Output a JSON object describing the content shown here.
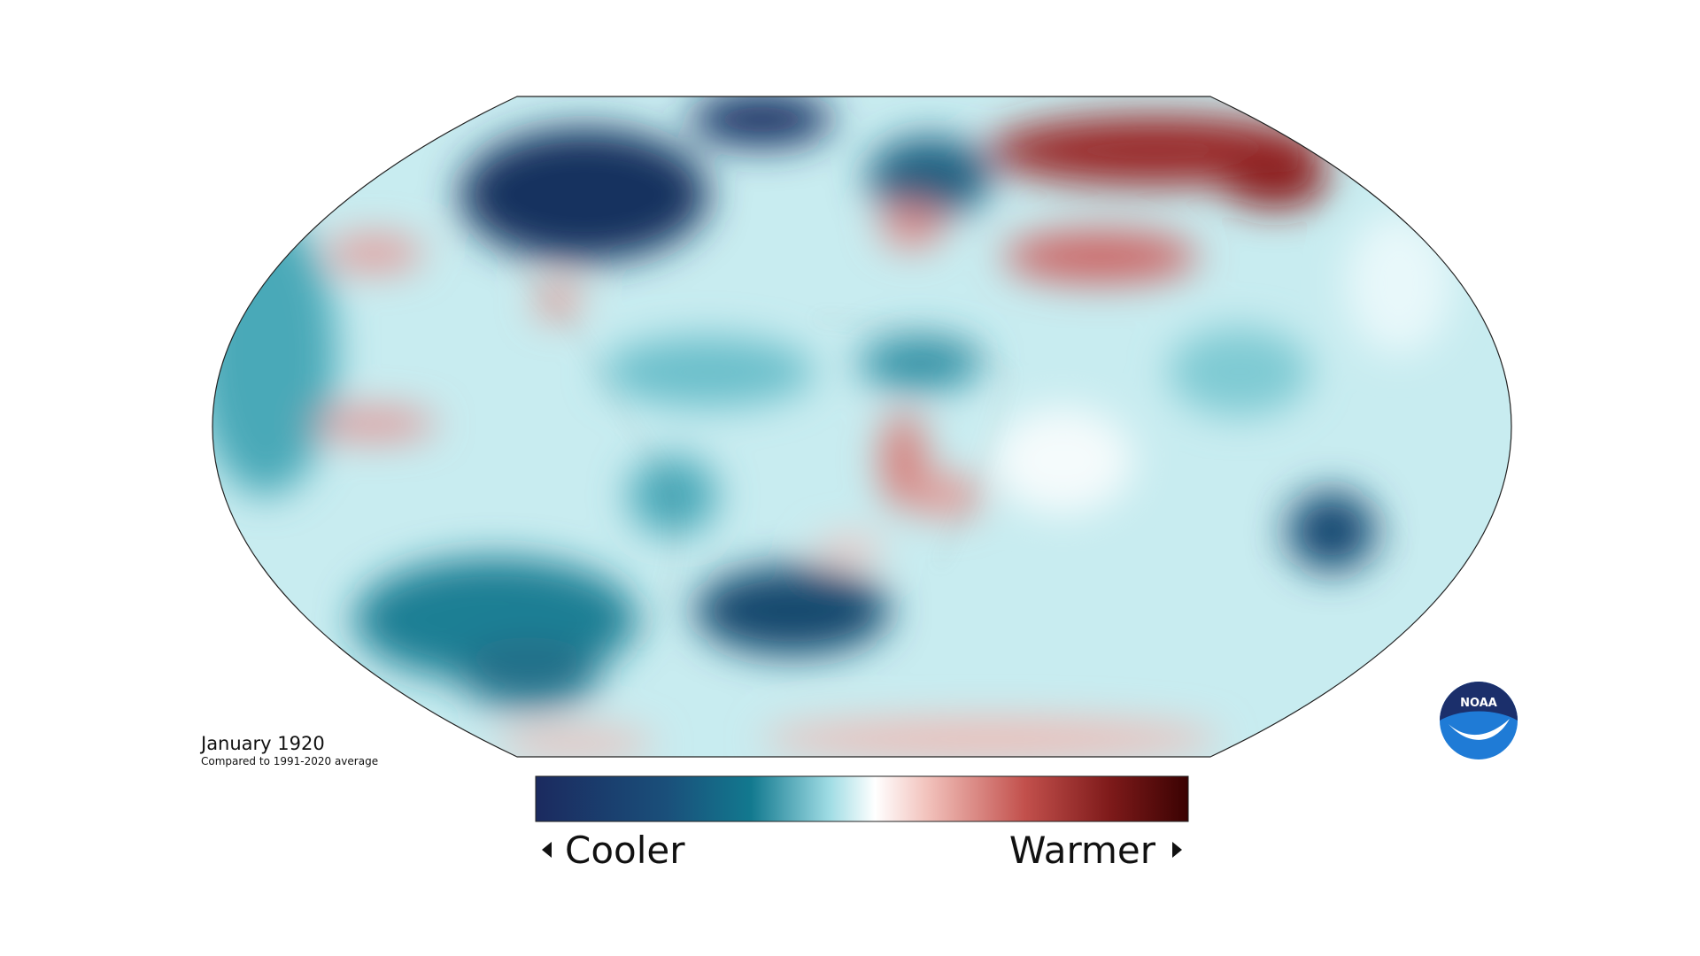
{
  "map": {
    "title": "January 1920",
    "subtitle": "Compared to 1991-2020 average"
  },
  "legend": {
    "low_label": "Cooler",
    "high_label": "Warmer"
  },
  "logo": {
    "text": "NOAA"
  }
}
